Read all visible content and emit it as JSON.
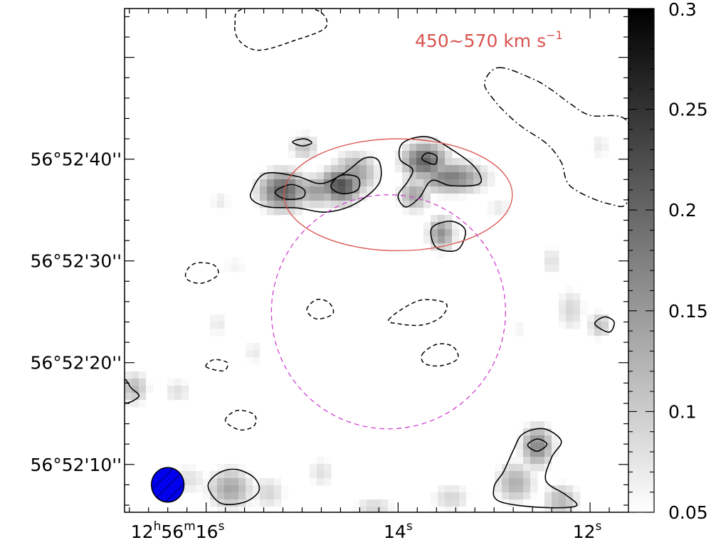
{
  "chart_data": {
    "type": "heatmap",
    "title": "",
    "annotation": {
      "text": "450~570 km s",
      "superscript": "−1",
      "color": "#d9534f"
    },
    "xlabel": "",
    "ylabel": "",
    "x_ticks": [
      {
        "ra_s": 16,
        "parts": [
          {
            "t": "12",
            "sup": false
          },
          {
            "t": "h",
            "sup": true
          },
          {
            "t": "56",
            "sup": false
          },
          {
            "t": "m",
            "sup": true
          },
          {
            "t": "16",
            "sup": false
          },
          {
            "t": "s",
            "sup": true
          }
        ]
      },
      {
        "ra_s": 14,
        "parts": [
          {
            "t": "14",
            "sup": false
          },
          {
            "t": "s",
            "sup": true
          }
        ]
      },
      {
        "ra_s": 12,
        "parts": [
          {
            "t": "12",
            "sup": false
          },
          {
            "t": "s",
            "sup": true
          }
        ]
      }
    ],
    "y_ticks": [
      {
        "dec_arcsec": 40,
        "label": "56°52'40''"
      },
      {
        "dec_arcsec": 30,
        "label": "56°52'30''"
      },
      {
        "dec_arcsec": 20,
        "label": "56°52'20''"
      },
      {
        "dec_arcsec": 10,
        "label": "56°52'10''"
      }
    ],
    "xlim_ra_s": [
      16.85,
      11.6
    ],
    "ylim_dec_arcsec": [
      5.3,
      54.8
    ],
    "colorbar": {
      "min": 0.05,
      "max": 0.3,
      "ticks": [
        "0.05",
        "0.1",
        "0.15",
        "0.2",
        "0.25",
        "0.3"
      ],
      "cmap": "white-to-black"
    },
    "colors": {
      "ellipse": "#d9534f",
      "circle": "#d040d0",
      "beam": "#0000ee",
      "contour": "#000000"
    },
    "regions": {
      "ellipse": {
        "center_ra_s": 14.0,
        "center_dec_arcsec": 36.5,
        "semi_ra_s": 1.19,
        "semi_dec_arcsec": 5.5
      },
      "circle": {
        "center_ra_s": 14.1,
        "center_dec_arcsec": 25.0,
        "radius_arcsec": 11.5
      }
    },
    "beam": {
      "center_ra_s": 16.4,
      "center_dec_arcsec": 8.0,
      "major_arcsec": 3.4,
      "minor_arcsec": 3.2
    },
    "emission": [
      {
        "ra_s": 15.2,
        "dec_arcsec": 36.9,
        "value": 0.2,
        "sra": 0.19,
        "sdec": 1.5
      },
      {
        "ra_s": 14.6,
        "dec_arcsec": 37.4,
        "value": 0.22,
        "sra": 0.17,
        "sdec": 1.3
      },
      {
        "ra_s": 14.85,
        "dec_arcsec": 36.9,
        "value": 0.14,
        "sra": 0.25,
        "sdec": 1.2
      },
      {
        "ra_s": 14.45,
        "dec_arcsec": 38.6,
        "value": 0.14,
        "sra": 0.18,
        "sdec": 1.6
      },
      {
        "ra_s": 13.72,
        "dec_arcsec": 39.8,
        "value": 0.2,
        "sra": 0.18,
        "sdec": 1.4
      },
      {
        "ra_s": 13.45,
        "dec_arcsec": 38.2,
        "value": 0.17,
        "sra": 0.28,
        "sdec": 1.2
      },
      {
        "ra_s": 13.83,
        "dec_arcsec": 36.5,
        "value": 0.13,
        "sra": 0.13,
        "sdec": 1.3
      },
      {
        "ra_s": 13.55,
        "dec_arcsec": 32.7,
        "value": 0.15,
        "sra": 0.11,
        "sdec": 1.3
      },
      {
        "ra_s": 14.98,
        "dec_arcsec": 41.2,
        "value": 0.1,
        "sra": 0.12,
        "sdec": 1.1
      },
      {
        "ra_s": 16.2,
        "dec_arcsec": 8.5,
        "value": 0.07,
        "sra": 0.2,
        "sdec": 1.3
      },
      {
        "ra_s": 15.75,
        "dec_arcsec": 7.6,
        "value": 0.13,
        "sra": 0.18,
        "sdec": 1.6
      },
      {
        "ra_s": 15.35,
        "dec_arcsec": 7.2,
        "value": 0.08,
        "sra": 0.15,
        "sdec": 1.4
      },
      {
        "ra_s": 14.8,
        "dec_arcsec": 9.2,
        "value": 0.07,
        "sra": 0.12,
        "sdec": 1.3
      },
      {
        "ra_s": 14.25,
        "dec_arcsec": 5.7,
        "value": 0.08,
        "sra": 0.18,
        "sdec": 1.0
      },
      {
        "ra_s": 13.45,
        "dec_arcsec": 6.7,
        "value": 0.08,
        "sra": 0.17,
        "sdec": 1.2
      },
      {
        "ra_s": 12.55,
        "dec_arcsec": 11.8,
        "value": 0.16,
        "sra": 0.13,
        "sdec": 1.6
      },
      {
        "ra_s": 12.78,
        "dec_arcsec": 8.2,
        "value": 0.12,
        "sra": 0.16,
        "sdec": 1.6
      },
      {
        "ra_s": 12.3,
        "dec_arcsec": 6.5,
        "value": 0.11,
        "sra": 0.15,
        "sdec": 1.3
      },
      {
        "ra_s": 16.75,
        "dec_arcsec": 17.5,
        "value": 0.11,
        "sra": 0.12,
        "sdec": 1.3
      },
      {
        "ra_s": 16.3,
        "dec_arcsec": 17.2,
        "value": 0.07,
        "sra": 0.13,
        "sdec": 1.1
      },
      {
        "ra_s": 11.9,
        "dec_arcsec": 23.7,
        "value": 0.1,
        "sra": 0.1,
        "sdec": 1.1
      },
      {
        "ra_s": 12.2,
        "dec_arcsec": 25.2,
        "value": 0.08,
        "sra": 0.12,
        "sdec": 1.8
      },
      {
        "ra_s": 12.4,
        "dec_arcsec": 30.0,
        "value": 0.07,
        "sra": 0.09,
        "sdec": 1.4
      },
      {
        "ra_s": 15.85,
        "dec_arcsec": 35.8,
        "value": 0.06,
        "sra": 0.1,
        "sdec": 1.0
      },
      {
        "ra_s": 15.7,
        "dec_arcsec": 29.5,
        "value": 0.05,
        "sra": 0.15,
        "sdec": 1.0
      },
      {
        "ra_s": 15.5,
        "dec_arcsec": 21.0,
        "value": 0.06,
        "sra": 0.1,
        "sdec": 1.1
      },
      {
        "ra_s": 15.88,
        "dec_arcsec": 23.8,
        "value": 0.06,
        "sra": 0.1,
        "sdec": 1.2
      },
      {
        "ra_s": 12.95,
        "dec_arcsec": 35.2,
        "value": 0.06,
        "sra": 0.12,
        "sdec": 1.0
      },
      {
        "ra_s": 12.75,
        "dec_arcsec": 23.3,
        "value": 0.05,
        "sra": 0.1,
        "sdec": 1.0
      },
      {
        "ra_s": 11.9,
        "dec_arcsec": 41.3,
        "value": 0.06,
        "sra": 0.1,
        "sdec": 1.2
      }
    ],
    "contours": {
      "positive": [
        [
          [
            15.52,
            37.0
          ],
          [
            15.38,
            38.6
          ],
          [
            15.05,
            38.3
          ],
          [
            14.8,
            37.6
          ],
          [
            14.55,
            38.7
          ],
          [
            14.35,
            40.1
          ],
          [
            14.2,
            39.8
          ],
          [
            14.2,
            37.6
          ],
          [
            14.45,
            35.6
          ],
          [
            14.75,
            34.8
          ],
          [
            15.05,
            35.2
          ],
          [
            15.35,
            35.3
          ],
          [
            15.52,
            36.0
          ]
        ],
        [
          [
            15.28,
            36.8
          ],
          [
            15.12,
            37.5
          ],
          [
            14.98,
            37.0
          ],
          [
            15.0,
            36.2
          ],
          [
            15.18,
            36.1
          ]
        ],
        [
          [
            14.7,
            37.3
          ],
          [
            14.6,
            38.4
          ],
          [
            14.42,
            38.2
          ],
          [
            14.42,
            37.0
          ],
          [
            14.58,
            36.6
          ]
        ],
        [
          [
            13.98,
            40.0
          ],
          [
            13.95,
            41.6
          ],
          [
            13.7,
            42.2
          ],
          [
            13.45,
            41.0
          ],
          [
            13.2,
            39.2
          ],
          [
            13.15,
            37.6
          ],
          [
            13.45,
            37.4
          ],
          [
            13.65,
            37.9
          ],
          [
            13.78,
            36.2
          ],
          [
            13.92,
            35.3
          ],
          [
            14.0,
            36.4
          ],
          [
            13.9,
            37.8
          ],
          [
            13.85,
            39.0
          ]
        ],
        [
          [
            13.75,
            40.0
          ],
          [
            13.7,
            40.6
          ],
          [
            13.6,
            40.3
          ],
          [
            13.62,
            39.5
          ]
        ],
        [
          [
            13.65,
            33.2
          ],
          [
            13.45,
            33.9
          ],
          [
            13.3,
            33.0
          ],
          [
            13.38,
            31.1
          ],
          [
            13.6,
            31.3
          ]
        ],
        [
          [
            15.1,
            41.7
          ],
          [
            14.98,
            42.0
          ],
          [
            14.9,
            41.6
          ],
          [
            15.0,
            41.3
          ]
        ],
        [
          [
            15.98,
            7.9
          ],
          [
            15.86,
            9.2
          ],
          [
            15.68,
            9.5
          ],
          [
            15.5,
            8.7
          ],
          [
            15.45,
            7.4
          ],
          [
            15.6,
            6.3
          ],
          [
            15.85,
            6.2
          ]
        ],
        [
          [
            12.8,
            11.4
          ],
          [
            12.7,
            13.0
          ],
          [
            12.48,
            13.5
          ],
          [
            12.3,
            12.3
          ],
          [
            12.4,
            10.7
          ],
          [
            12.46,
            8.4
          ],
          [
            12.25,
            7.0
          ],
          [
            12.15,
            5.9
          ],
          [
            12.55,
            5.8
          ],
          [
            12.95,
            6.4
          ],
          [
            13.0,
            7.8
          ],
          [
            12.9,
            9.3
          ]
        ],
        [
          [
            12.65,
            11.9
          ],
          [
            12.55,
            12.5
          ],
          [
            12.45,
            12.0
          ],
          [
            12.55,
            11.3
          ]
        ],
        [
          [
            11.95,
            23.8
          ],
          [
            11.85,
            24.5
          ],
          [
            11.75,
            24.0
          ],
          [
            11.8,
            23.0
          ]
        ],
        [
          [
            16.85,
            18.3
          ],
          [
            16.78,
            17.5
          ],
          [
            16.7,
            16.7
          ],
          [
            16.85,
            16.1
          ]
        ]
      ],
      "negative": [
        [
          [
            16.2,
            29.1
          ],
          [
            16.1,
            29.8
          ],
          [
            15.92,
            29.6
          ],
          [
            15.88,
            28.6
          ],
          [
            16.05,
            27.8
          ],
          [
            16.2,
            28.2
          ]
        ],
        [
          [
            14.95,
            25.2
          ],
          [
            14.85,
            26.2
          ],
          [
            14.72,
            25.9
          ],
          [
            14.68,
            24.8
          ],
          [
            14.85,
            24.3
          ]
        ],
        [
          [
            14.1,
            24.2
          ],
          [
            13.9,
            25.6
          ],
          [
            13.72,
            26.2
          ],
          [
            13.5,
            25.8
          ],
          [
            13.55,
            24.5
          ],
          [
            13.75,
            23.7
          ],
          [
            13.98,
            23.8
          ]
        ],
        [
          [
            13.75,
            20.8
          ],
          [
            13.6,
            21.8
          ],
          [
            13.43,
            21.6
          ],
          [
            13.38,
            20.4
          ],
          [
            13.55,
            19.7
          ],
          [
            13.72,
            19.9
          ]
        ],
        [
          [
            16.0,
            19.6
          ],
          [
            15.92,
            20.3
          ],
          [
            15.78,
            20.0
          ],
          [
            15.82,
            19.2
          ]
        ],
        [
          [
            15.8,
            14.3
          ],
          [
            15.68,
            15.3
          ],
          [
            15.5,
            14.9
          ],
          [
            15.5,
            13.8
          ],
          [
            15.65,
            13.4
          ]
        ],
        [
          [
            15.7,
            53.2
          ],
          [
            15.6,
            54.8
          ],
          [
            14.9,
            54.8
          ],
          [
            14.75,
            53.0
          ],
          [
            15.1,
            51.6
          ],
          [
            15.45,
            50.7
          ],
          [
            15.65,
            51.6
          ]
        ]
      ],
      "dashdot": [
        [
          [
            12.95,
            49.0
          ],
          [
            12.6,
            47.9
          ],
          [
            12.4,
            46.8
          ],
          [
            12.2,
            45.4
          ],
          [
            12.0,
            44.3
          ],
          [
            11.6,
            43.5
          ],
          [
            11.6,
            36.2
          ],
          [
            11.8,
            35.6
          ],
          [
            12.2,
            37.3
          ],
          [
            12.3,
            39.7
          ],
          [
            12.45,
            41.5
          ],
          [
            12.7,
            43.1
          ],
          [
            12.85,
            44.3
          ],
          [
            13.0,
            45.8
          ],
          [
            13.1,
            47.5
          ]
        ]
      ]
    }
  }
}
